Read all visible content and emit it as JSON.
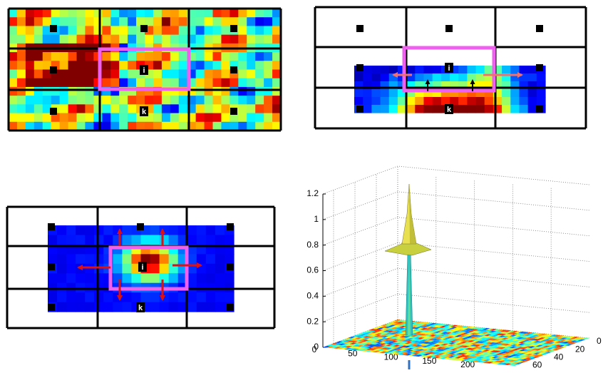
{
  "panels": [
    {
      "labels": [
        "i",
        "k"
      ]
    },
    {
      "labels": [
        "i",
        "k"
      ]
    },
    {
      "labels": [
        "i",
        "k"
      ]
    }
  ],
  "surface_plot": {
    "zticks": [
      0,
      0.2,
      0.4,
      0.6,
      0.8,
      1,
      1.2
    ],
    "xticks": [
      0,
      50,
      100,
      150,
      200
    ],
    "yticks": [
      0,
      20,
      40,
      60
    ]
  }
}
